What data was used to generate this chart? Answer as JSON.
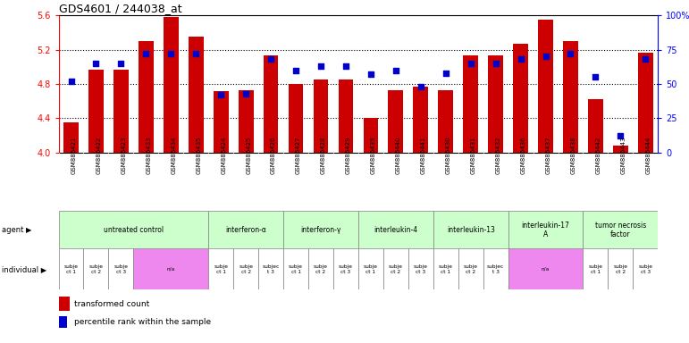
{
  "title": "GDS4601 / 244038_at",
  "samples": [
    "GSM886421",
    "GSM886422",
    "GSM886423",
    "GSM886433",
    "GSM886434",
    "GSM886435",
    "GSM886424",
    "GSM886425",
    "GSM886426",
    "GSM886427",
    "GSM886428",
    "GSM886429",
    "GSM886439",
    "GSM886440",
    "GSM886441",
    "GSM886430",
    "GSM886431",
    "GSM886432",
    "GSM886436",
    "GSM886437",
    "GSM886438",
    "GSM886442",
    "GSM886443",
    "GSM886444"
  ],
  "transformed_count": [
    4.35,
    4.97,
    4.97,
    5.3,
    5.58,
    5.35,
    4.72,
    4.73,
    5.13,
    4.8,
    4.85,
    4.85,
    4.4,
    4.73,
    4.77,
    4.73,
    5.13,
    5.13,
    5.27,
    5.55,
    5.3,
    4.62,
    4.08,
    5.17
  ],
  "percentile_rank": [
    52,
    65,
    65,
    72,
    72,
    72,
    42,
    43,
    68,
    60,
    63,
    63,
    57,
    60,
    48,
    58,
    65,
    65,
    68,
    70,
    72,
    55,
    12,
    68
  ],
  "ylim_left": [
    4.0,
    5.6
  ],
  "ylim_right": [
    0,
    100
  ],
  "yticks_left": [
    4.0,
    4.4,
    4.8,
    5.2,
    5.6
  ],
  "yticks_right": [
    0,
    25,
    50,
    75,
    100
  ],
  "ytick_labels_right": [
    "0",
    "25",
    "50",
    "75",
    "100%"
  ],
  "bar_color": "#cc0000",
  "dot_color": "#0000cc",
  "agent_groups": [
    {
      "label": "untreated control",
      "start": 0,
      "end": 6,
      "color": "#ccffcc"
    },
    {
      "label": "interferon-α",
      "start": 6,
      "end": 9,
      "color": "#ccffcc"
    },
    {
      "label": "interferon-γ",
      "start": 9,
      "end": 12,
      "color": "#ccffcc"
    },
    {
      "label": "interleukin-4",
      "start": 12,
      "end": 15,
      "color": "#ccffcc"
    },
    {
      "label": "interleukin-13",
      "start": 15,
      "end": 18,
      "color": "#ccffcc"
    },
    {
      "label": "interleukin-17\nA",
      "start": 18,
      "end": 21,
      "color": "#ccffcc"
    },
    {
      "label": "tumor necrosis\nfactor",
      "start": 21,
      "end": 24,
      "color": "#ccffcc"
    }
  ],
  "individual_groups": [
    {
      "label": "subje\nct 1",
      "start": 0,
      "end": 1,
      "color": "#ffffff"
    },
    {
      "label": "subje\nct 2",
      "start": 1,
      "end": 2,
      "color": "#ffffff"
    },
    {
      "label": "subje\nct 3",
      "start": 2,
      "end": 3,
      "color": "#ffffff"
    },
    {
      "label": "n/a",
      "start": 3,
      "end": 6,
      "color": "#ee88ee"
    },
    {
      "label": "subje\nct 1",
      "start": 6,
      "end": 7,
      "color": "#ffffff"
    },
    {
      "label": "subje\nct 2",
      "start": 7,
      "end": 8,
      "color": "#ffffff"
    },
    {
      "label": "subjec\nt 3",
      "start": 8,
      "end": 9,
      "color": "#ffffff"
    },
    {
      "label": "subje\nct 1",
      "start": 9,
      "end": 10,
      "color": "#ffffff"
    },
    {
      "label": "subje\nct 2",
      "start": 10,
      "end": 11,
      "color": "#ffffff"
    },
    {
      "label": "subje\nct 3",
      "start": 11,
      "end": 12,
      "color": "#ffffff"
    },
    {
      "label": "subje\nct 1",
      "start": 12,
      "end": 13,
      "color": "#ffffff"
    },
    {
      "label": "subje\nct 2",
      "start": 13,
      "end": 14,
      "color": "#ffffff"
    },
    {
      "label": "subje\nct 3",
      "start": 14,
      "end": 15,
      "color": "#ffffff"
    },
    {
      "label": "subje\nct 1",
      "start": 15,
      "end": 16,
      "color": "#ffffff"
    },
    {
      "label": "subje\nct 2",
      "start": 16,
      "end": 17,
      "color": "#ffffff"
    },
    {
      "label": "subjec\nt 3",
      "start": 17,
      "end": 18,
      "color": "#ffffff"
    },
    {
      "label": "n/a",
      "start": 18,
      "end": 21,
      "color": "#ee88ee"
    },
    {
      "label": "subje\nct 1",
      "start": 21,
      "end": 22,
      "color": "#ffffff"
    },
    {
      "label": "subje\nct 2",
      "start": 22,
      "end": 23,
      "color": "#ffffff"
    },
    {
      "label": "subje\nct 3",
      "start": 23,
      "end": 24,
      "color": "#ffffff"
    }
  ],
  "agent_label": "agent",
  "individual_label": "individual",
  "legend_bar_label": "transformed count",
  "legend_dot_label": "percentile rank within the sample",
  "xtick_bg": "#dddddd"
}
